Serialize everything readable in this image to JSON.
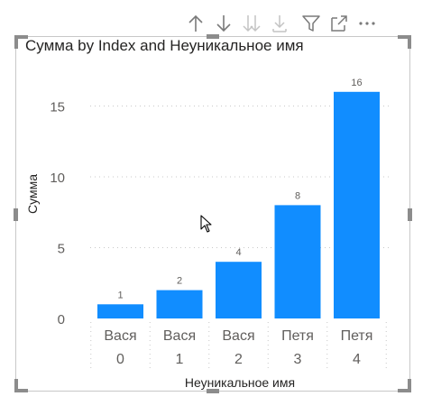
{
  "toolbar": {
    "icons": [
      "arrow-up-icon",
      "arrow-down-icon",
      "double-arrow-down-icon",
      "expand-hierarchy-icon",
      "filter-icon",
      "focus-mode-icon",
      "more-options-icon"
    ],
    "more_label": "···"
  },
  "chart_data": {
    "type": "bar",
    "title": "Сумма by Index and Неуникальное имя",
    "xlabel": "Неуникальное имя",
    "ylabel": "Сумма",
    "categories": [
      {
        "name": "Вася",
        "index": "0"
      },
      {
        "name": "Вася",
        "index": "1"
      },
      {
        "name": "Вася",
        "index": "2"
      },
      {
        "name": "Петя",
        "index": "3"
      },
      {
        "name": "Петя",
        "index": "4"
      }
    ],
    "values": [
      1,
      2,
      4,
      8,
      16
    ],
    "data_labels": [
      "1",
      "2",
      "4",
      "8",
      "16"
    ],
    "yticks": [
      0,
      5,
      10,
      15
    ],
    "ylim": [
      0,
      17
    ],
    "grid": true,
    "bar_color": "#118DFF"
  }
}
